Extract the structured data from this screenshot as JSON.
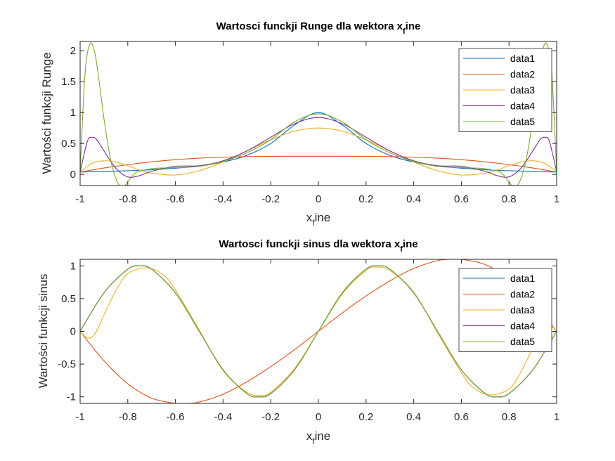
{
  "chart_data": [
    {
      "type": "line",
      "title": "Wartosci funckji Runge dla wektora x",
      "title_sub": "f",
      "title_tail": "ine",
      "xlabel": "x",
      "xlabel_sub": "f",
      "xlabel_tail": "ine",
      "ylabel": "Wartości funkcji Runge",
      "xlim": [
        -1,
        1
      ],
      "ylim": [
        -0.18,
        2.15
      ],
      "xticks": [
        "-1",
        "-0.8",
        "-0.6",
        "-0.4",
        "-0.2",
        "0",
        "0.2",
        "0.4",
        "0.6",
        "0.8",
        "1"
      ],
      "yticks": [
        "0",
        "0.5",
        "1",
        "1.5",
        "2"
      ],
      "legend_position": "top-right",
      "series": [
        {
          "name": "data1",
          "color": "#0072BD",
          "x": [
            -1,
            -0.9,
            -0.8,
            -0.7,
            -0.6,
            -0.5,
            -0.4,
            -0.3,
            -0.2,
            -0.1,
            0,
            0.1,
            0.2,
            0.3,
            0.4,
            0.5,
            0.6,
            0.7,
            0.8,
            0.9,
            1
          ],
          "y": [
            0.038,
            0.047,
            0.059,
            0.075,
            0.1,
            0.138,
            0.2,
            0.308,
            0.5,
            0.8,
            1,
            0.8,
            0.5,
            0.308,
            0.2,
            0.138,
            0.1,
            0.075,
            0.059,
            0.047,
            0.038
          ]
        },
        {
          "name": "data2",
          "color": "#D95319",
          "x": [
            -1,
            -0.9,
            -0.8,
            -0.7,
            -0.6,
            -0.5,
            -0.4,
            -0.3,
            -0.2,
            -0.1,
            0,
            0.1,
            0.2,
            0.3,
            0.4,
            0.5,
            0.6,
            0.7,
            0.8,
            0.9,
            1
          ],
          "y": [
            0.038,
            0.103,
            0.158,
            0.203,
            0.238,
            0.263,
            0.279,
            0.288,
            0.292,
            0.294,
            0.294,
            0.294,
            0.292,
            0.288,
            0.279,
            0.263,
            0.238,
            0.203,
            0.158,
            0.103,
            0.038
          ]
        },
        {
          "name": "data3",
          "color": "#EDB120",
          "x": [
            -1,
            -0.95,
            -0.9,
            -0.85,
            -0.8,
            -0.75,
            -0.7,
            -0.6,
            -0.5,
            -0.4,
            -0.3,
            -0.2,
            -0.1,
            0,
            0.1,
            0.2,
            0.3,
            0.4,
            0.5,
            0.6,
            0.7,
            0.75,
            0.8,
            0.85,
            0.9,
            0.95,
            1
          ],
          "y": [
            0.038,
            0.18,
            0.22,
            0.2,
            0.14,
            0.07,
            0.02,
            -0.01,
            0.06,
            0.2,
            0.38,
            0.56,
            0.7,
            0.75,
            0.7,
            0.56,
            0.38,
            0.2,
            0.06,
            -0.01,
            0.02,
            0.07,
            0.14,
            0.2,
            0.22,
            0.18,
            0.038
          ]
        },
        {
          "name": "data4",
          "color": "#7E2F8E",
          "x": [
            -1,
            -0.97,
            -0.95,
            -0.93,
            -0.9,
            -0.85,
            -0.8,
            -0.75,
            -0.7,
            -0.6,
            -0.5,
            -0.4,
            -0.3,
            -0.2,
            -0.1,
            0,
            0.1,
            0.2,
            0.3,
            0.4,
            0.5,
            0.6,
            0.7,
            0.75,
            0.8,
            0.85,
            0.9,
            0.93,
            0.95,
            0.97,
            1
          ],
          "y": [
            0.038,
            0.53,
            0.6,
            0.56,
            0.38,
            0.1,
            -0.04,
            -0.02,
            0.05,
            0.13,
            0.14,
            0.22,
            0.38,
            0.6,
            0.82,
            0.92,
            0.82,
            0.6,
            0.38,
            0.22,
            0.14,
            0.13,
            0.05,
            -0.02,
            -0.04,
            0.1,
            0.38,
            0.56,
            0.6,
            0.53,
            0.038
          ]
        },
        {
          "name": "data5",
          "color": "#77AC30",
          "x": [
            -1,
            -0.98,
            -0.96,
            -0.94,
            -0.92,
            -0.9,
            -0.88,
            -0.86,
            -0.84,
            -0.82,
            -0.8,
            -0.78,
            -0.76,
            -0.72,
            -0.68,
            -0.6,
            -0.5,
            -0.4,
            -0.3,
            -0.2,
            -0.1,
            0,
            0.1,
            0.2,
            0.3,
            0.4,
            0.5,
            0.6,
            0.68,
            0.72,
            0.76,
            0.78,
            0.8,
            0.82,
            0.84,
            0.86,
            0.88,
            0.9,
            0.92,
            0.94,
            0.96,
            0.98,
            1
          ],
          "y": [
            0.038,
            1.6,
            2.1,
            2.0,
            1.5,
            0.9,
            0.4,
            0.05,
            -0.15,
            -0.2,
            -0.12,
            -0.02,
            0.04,
            0.08,
            0.1,
            0.11,
            0.13,
            0.21,
            0.35,
            0.56,
            0.85,
            0.98,
            0.85,
            0.56,
            0.35,
            0.21,
            0.13,
            0.11,
            0.1,
            0.08,
            0.04,
            -0.02,
            -0.12,
            -0.2,
            -0.15,
            0.05,
            0.4,
            0.9,
            1.5,
            2.0,
            2.1,
            1.6,
            0.038
          ]
        }
      ]
    },
    {
      "type": "line",
      "title": "Wartosci funckji sinus dla wektora x",
      "title_sub": "f",
      "title_tail": "ine",
      "xlabel": "x",
      "xlabel_sub": "f",
      "xlabel_tail": "ine",
      "ylabel": "Wartości funkcji sinus",
      "xlim": [
        -1,
        1
      ],
      "ylim": [
        -1.1,
        1.1
      ],
      "xticks": [
        "-1",
        "-0.8",
        "-0.6",
        "-0.4",
        "-0.2",
        "0",
        "0.2",
        "0.4",
        "0.6",
        "0.8",
        "1"
      ],
      "yticks": [
        "-1",
        "-0.5",
        "0",
        "0.5",
        "1"
      ],
      "legend_position": "top-right",
      "series": [
        {
          "name": "data1",
          "color": "#0072BD",
          "x": [
            -1,
            -0.9,
            -0.8,
            -0.75,
            -0.7,
            -0.6,
            -0.5,
            -0.4,
            -0.3,
            -0.25,
            -0.2,
            -0.1,
            0,
            0.1,
            0.2,
            0.25,
            0.3,
            0.4,
            0.5,
            0.6,
            0.7,
            0.75,
            0.8,
            0.9,
            1
          ],
          "y": [
            0,
            0.588,
            0.951,
            1,
            0.951,
            0.588,
            0,
            -0.588,
            -0.951,
            -1,
            -0.951,
            -0.588,
            0,
            0.588,
            0.951,
            1,
            0.951,
            0.588,
            0,
            -0.588,
            -0.951,
            -1,
            -0.951,
            -0.588,
            0
          ]
        },
        {
          "name": "data2",
          "color": "#D95319",
          "x": [
            -1,
            -0.9,
            -0.8,
            -0.7,
            -0.6,
            -0.55,
            -0.5,
            -0.4,
            -0.3,
            -0.2,
            -0.1,
            0,
            0.1,
            0.2,
            0.3,
            0.4,
            0.5,
            0.55,
            0.6,
            0.7,
            0.8,
            0.9,
            1
          ],
          "y": [
            0,
            -0.45,
            -0.8,
            -1.02,
            -1.1,
            -1.1,
            -1.08,
            -0.96,
            -0.77,
            -0.54,
            -0.28,
            0,
            0.28,
            0.54,
            0.77,
            0.96,
            1.08,
            1.1,
            1.1,
            1.02,
            0.8,
            0.45,
            0
          ]
        },
        {
          "name": "data3",
          "color": "#EDB120",
          "x": [
            -1,
            -0.97,
            -0.94,
            -0.9,
            -0.85,
            -0.8,
            -0.72,
            -0.65,
            -0.6,
            -0.5,
            -0.4,
            -0.3,
            -0.24,
            -0.2,
            -0.1,
            0,
            0.1,
            0.2,
            0.24,
            0.3,
            0.4,
            0.5,
            0.6,
            0.65,
            0.72,
            0.8,
            0.85,
            0.9,
            0.94,
            0.97,
            1
          ],
          "y": [
            0,
            -0.1,
            -0.05,
            0.25,
            0.62,
            0.88,
            0.97,
            0.86,
            0.63,
            0.02,
            -0.6,
            -0.93,
            -0.98,
            -0.93,
            -0.57,
            0,
            0.57,
            0.93,
            0.98,
            0.93,
            0.6,
            -0.02,
            -0.63,
            -0.86,
            -0.97,
            -0.88,
            -0.62,
            -0.25,
            0.05,
            0.1,
            0
          ]
        },
        {
          "name": "data4",
          "color": "#7E2F8E",
          "x": [
            -1,
            -0.9,
            -0.8,
            -0.75,
            -0.7,
            -0.6,
            -0.5,
            -0.4,
            -0.3,
            -0.25,
            -0.2,
            -0.1,
            0,
            0.1,
            0.2,
            0.25,
            0.3,
            0.4,
            0.5,
            0.6,
            0.7,
            0.75,
            0.8,
            0.9,
            1
          ],
          "y": [
            0,
            0.586,
            0.948,
            0.998,
            0.949,
            0.587,
            0,
            -0.587,
            -0.95,
            -0.999,
            -0.95,
            -0.587,
            0,
            0.587,
            0.95,
            0.999,
            0.95,
            0.587,
            0,
            -0.587,
            -0.949,
            -0.998,
            -0.948,
            -0.586,
            0
          ]
        },
        {
          "name": "data5",
          "color": "#77AC30",
          "x": [
            -1,
            -0.9,
            -0.8,
            -0.75,
            -0.7,
            -0.6,
            -0.5,
            -0.4,
            -0.3,
            -0.25,
            -0.2,
            -0.1,
            0,
            0.1,
            0.2,
            0.25,
            0.3,
            0.4,
            0.5,
            0.6,
            0.7,
            0.75,
            0.8,
            0.9,
            1
          ],
          "y": [
            0,
            0.588,
            0.951,
            1,
            0.951,
            0.588,
            0,
            -0.588,
            -0.951,
            -1,
            -0.951,
            -0.588,
            0,
            0.588,
            0.951,
            1,
            0.951,
            0.588,
            0,
            -0.588,
            -0.951,
            -1,
            -0.951,
            -0.588,
            0
          ]
        }
      ]
    }
  ]
}
